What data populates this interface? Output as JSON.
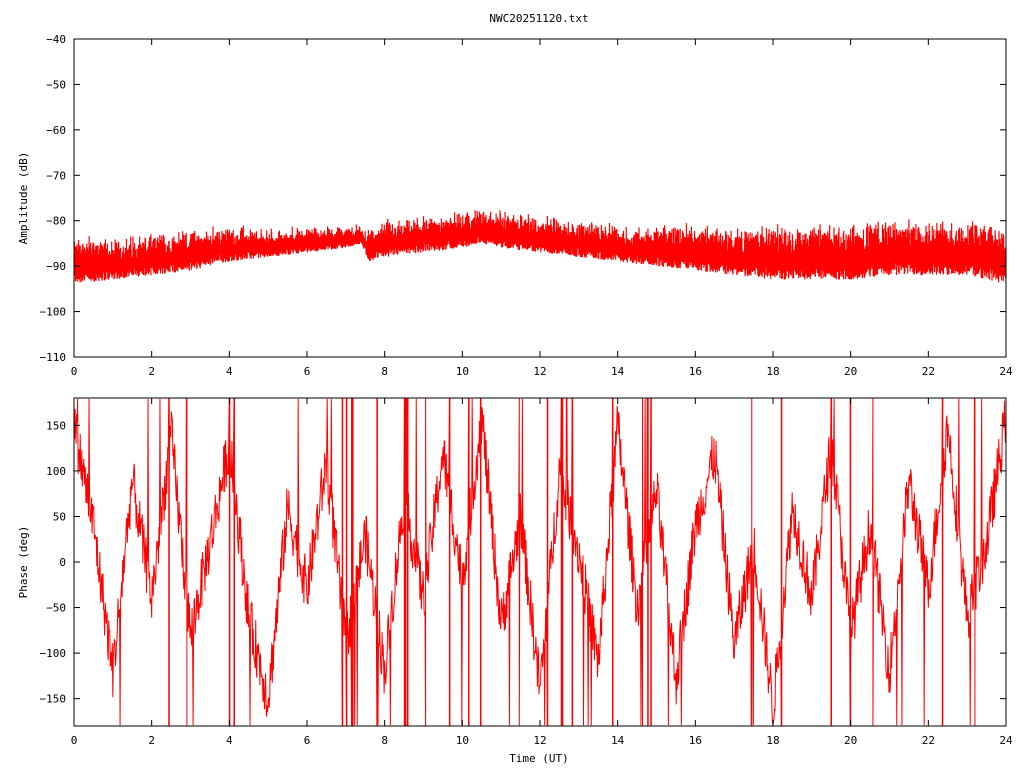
{
  "title": "NWC20251120.txt",
  "colors": {
    "series": "#ff0000",
    "axis": "#000000",
    "background": "#ffffff"
  },
  "chart_data": [
    {
      "type": "line",
      "id": "amplitude",
      "title": "NWC20251120.txt",
      "xlabel": "",
      "ylabel": "Amplitude (dB)",
      "xlim": [
        0,
        24
      ],
      "ylim": [
        -110,
        -40
      ],
      "xticks": [
        0,
        2,
        4,
        6,
        8,
        10,
        12,
        14,
        16,
        18,
        20,
        22,
        24
      ],
      "yticks": [
        -110,
        -100,
        -90,
        -80,
        -70,
        -60,
        -50,
        -40
      ],
      "grid": false,
      "series": [
        {
          "x": [
            0,
            1,
            2,
            3,
            4,
            5,
            6,
            7,
            7.4,
            7.6,
            8,
            9,
            10,
            10.5,
            11,
            12,
            13,
            14,
            15,
            16,
            17,
            18,
            19,
            20,
            21,
            22,
            23,
            24
          ],
          "low": [
            -94,
            -93,
            -92,
            -91,
            -89,
            -88,
            -87,
            -86,
            -85,
            -89,
            -88,
            -87,
            -86,
            -85,
            -86,
            -87,
            -88,
            -89,
            -90,
            -91,
            -92,
            -93,
            -93,
            -93,
            -92,
            -92,
            -92,
            -94
          ],
          "high": [
            -84,
            -85,
            -84,
            -83,
            -82,
            -83,
            -82,
            -82,
            -82,
            -83,
            -81,
            -80,
            -79,
            -78,
            -79,
            -80,
            -81,
            -82,
            -82,
            -82,
            -83,
            -82,
            -82,
            -82,
            -81,
            -81,
            -81,
            -81
          ]
        }
      ]
    },
    {
      "type": "line",
      "id": "phase",
      "xlabel": "Time (UT)",
      "ylabel": "Phase (deg)",
      "xlim": [
        0,
        24
      ],
      "ylim": [
        -180,
        180
      ],
      "xticks": [
        0,
        2,
        4,
        6,
        8,
        10,
        12,
        14,
        16,
        18,
        20,
        22,
        24
      ],
      "yticks": [
        -150,
        -100,
        -50,
        0,
        50,
        100,
        150
      ],
      "grid": false,
      "series": [
        {
          "x": [
            0,
            0.5,
            1,
            1.5,
            2,
            2.5,
            3,
            3.5,
            4,
            4.5,
            5,
            5.5,
            6,
            6.5,
            7,
            7.5,
            8,
            8.5,
            9,
            9.5,
            10,
            10.5,
            11,
            11.5,
            12,
            12.5,
            13,
            13.5,
            14,
            14.5,
            15,
            15.5,
            16,
            16.5,
            17,
            17.5,
            18,
            18.5,
            19,
            19.5,
            20,
            20.5,
            21,
            21.5,
            22,
            22.5,
            23,
            23.5,
            24
          ],
          "y": [
            150,
            40,
            -120,
            90,
            -40,
            140,
            -80,
            20,
            130,
            -60,
            -150,
            60,
            -30,
            110,
            -90,
            30,
            -120,
            70,
            -40,
            120,
            -20,
            160,
            -70,
            50,
            -140,
            100,
            10,
            -110,
            150,
            -50,
            80,
            -130,
            40,
            120,
            -90,
            20,
            -160,
            60,
            -40,
            130,
            -80,
            40,
            -120,
            90,
            -30,
            150,
            -60,
            20,
            160
          ]
        }
      ]
    }
  ]
}
